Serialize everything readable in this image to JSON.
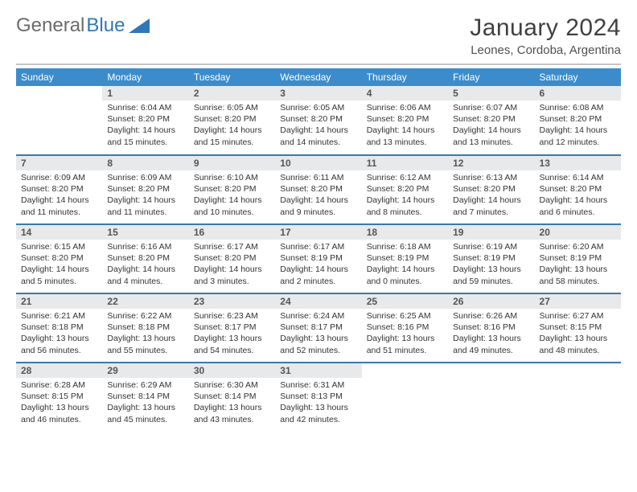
{
  "brand": {
    "part1": "General",
    "part2": "Blue"
  },
  "title": "January 2024",
  "location": "Leones, Cordoba, Argentina",
  "colors": {
    "header_bg": "#3c8ccc",
    "header_text": "#ffffff",
    "daynum_bg": "#e7e9ea",
    "row_border": "#3c78aa",
    "title_color": "#404040",
    "brand_gray": "#6b6b6b",
    "brand_blue": "#2f78b8"
  },
  "weekdays": [
    "Sunday",
    "Monday",
    "Tuesday",
    "Wednesday",
    "Thursday",
    "Friday",
    "Saturday"
  ],
  "start_offset": 1,
  "days": [
    {
      "n": "1",
      "sr": "6:04 AM",
      "ss": "8:20 PM",
      "dl": "14 hours and 15 minutes."
    },
    {
      "n": "2",
      "sr": "6:05 AM",
      "ss": "8:20 PM",
      "dl": "14 hours and 15 minutes."
    },
    {
      "n": "3",
      "sr": "6:05 AM",
      "ss": "8:20 PM",
      "dl": "14 hours and 14 minutes."
    },
    {
      "n": "4",
      "sr": "6:06 AM",
      "ss": "8:20 PM",
      "dl": "14 hours and 13 minutes."
    },
    {
      "n": "5",
      "sr": "6:07 AM",
      "ss": "8:20 PM",
      "dl": "14 hours and 13 minutes."
    },
    {
      "n": "6",
      "sr": "6:08 AM",
      "ss": "8:20 PM",
      "dl": "14 hours and 12 minutes."
    },
    {
      "n": "7",
      "sr": "6:09 AM",
      "ss": "8:20 PM",
      "dl": "14 hours and 11 minutes."
    },
    {
      "n": "8",
      "sr": "6:09 AM",
      "ss": "8:20 PM",
      "dl": "14 hours and 11 minutes."
    },
    {
      "n": "9",
      "sr": "6:10 AM",
      "ss": "8:20 PM",
      "dl": "14 hours and 10 minutes."
    },
    {
      "n": "10",
      "sr": "6:11 AM",
      "ss": "8:20 PM",
      "dl": "14 hours and 9 minutes."
    },
    {
      "n": "11",
      "sr": "6:12 AM",
      "ss": "8:20 PM",
      "dl": "14 hours and 8 minutes."
    },
    {
      "n": "12",
      "sr": "6:13 AM",
      "ss": "8:20 PM",
      "dl": "14 hours and 7 minutes."
    },
    {
      "n": "13",
      "sr": "6:14 AM",
      "ss": "8:20 PM",
      "dl": "14 hours and 6 minutes."
    },
    {
      "n": "14",
      "sr": "6:15 AM",
      "ss": "8:20 PM",
      "dl": "14 hours and 5 minutes."
    },
    {
      "n": "15",
      "sr": "6:16 AM",
      "ss": "8:20 PM",
      "dl": "14 hours and 4 minutes."
    },
    {
      "n": "16",
      "sr": "6:17 AM",
      "ss": "8:20 PM",
      "dl": "14 hours and 3 minutes."
    },
    {
      "n": "17",
      "sr": "6:17 AM",
      "ss": "8:19 PM",
      "dl": "14 hours and 2 minutes."
    },
    {
      "n": "18",
      "sr": "6:18 AM",
      "ss": "8:19 PM",
      "dl": "14 hours and 0 minutes."
    },
    {
      "n": "19",
      "sr": "6:19 AM",
      "ss": "8:19 PM",
      "dl": "13 hours and 59 minutes."
    },
    {
      "n": "20",
      "sr": "6:20 AM",
      "ss": "8:19 PM",
      "dl": "13 hours and 58 minutes."
    },
    {
      "n": "21",
      "sr": "6:21 AM",
      "ss": "8:18 PM",
      "dl": "13 hours and 56 minutes."
    },
    {
      "n": "22",
      "sr": "6:22 AM",
      "ss": "8:18 PM",
      "dl": "13 hours and 55 minutes."
    },
    {
      "n": "23",
      "sr": "6:23 AM",
      "ss": "8:17 PM",
      "dl": "13 hours and 54 minutes."
    },
    {
      "n": "24",
      "sr": "6:24 AM",
      "ss": "8:17 PM",
      "dl": "13 hours and 52 minutes."
    },
    {
      "n": "25",
      "sr": "6:25 AM",
      "ss": "8:16 PM",
      "dl": "13 hours and 51 minutes."
    },
    {
      "n": "26",
      "sr": "6:26 AM",
      "ss": "8:16 PM",
      "dl": "13 hours and 49 minutes."
    },
    {
      "n": "27",
      "sr": "6:27 AM",
      "ss": "8:15 PM",
      "dl": "13 hours and 48 minutes."
    },
    {
      "n": "28",
      "sr": "6:28 AM",
      "ss": "8:15 PM",
      "dl": "13 hours and 46 minutes."
    },
    {
      "n": "29",
      "sr": "6:29 AM",
      "ss": "8:14 PM",
      "dl": "13 hours and 45 minutes."
    },
    {
      "n": "30",
      "sr": "6:30 AM",
      "ss": "8:14 PM",
      "dl": "13 hours and 43 minutes."
    },
    {
      "n": "31",
      "sr": "6:31 AM",
      "ss": "8:13 PM",
      "dl": "13 hours and 42 minutes."
    }
  ],
  "labels": {
    "sunrise": "Sunrise:",
    "sunset": "Sunset:",
    "daylight": "Daylight:"
  }
}
